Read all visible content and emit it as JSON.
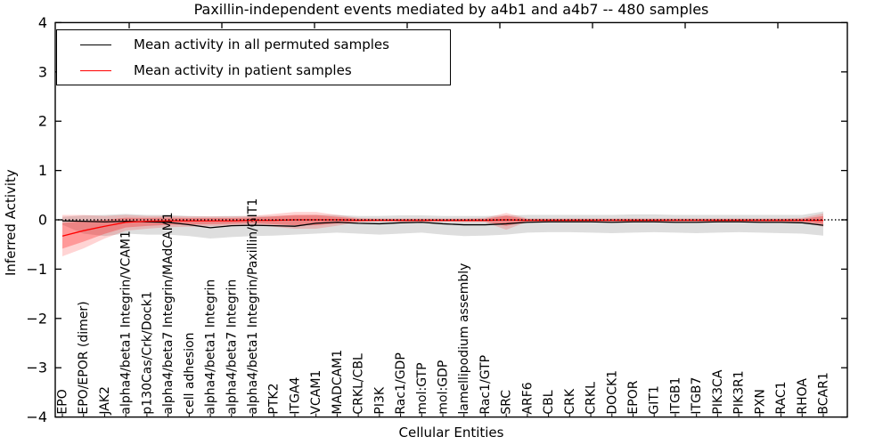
{
  "title": "Paxillin-independent events mediated by a4b1 and a4b7 -- 480 samples",
  "axes": {
    "xlabel": "Cellular Entities",
    "ylabel": "Inferred Activity"
  },
  "legend": {
    "items": [
      {
        "label": "Mean activity in all permuted samples",
        "color": "#000000"
      },
      {
        "label": "Mean activity in patient samples",
        "color": "#ff0000"
      }
    ]
  },
  "colors": {
    "background": "#ffffff",
    "axis": "#000000",
    "permuted_line": "#000000",
    "patient_line": "#ff0000",
    "permuted_band": "rgba(0,0,0,0.13)",
    "patient_band_outer": "rgba(255,0,0,0.17)",
    "patient_band_inner": "rgba(255,0,0,0.28)"
  },
  "chart_data": {
    "type": "line",
    "title": "Paxillin-independent events mediated by a4b1 and a4b7 -- 480 samples",
    "xlabel": "Cellular Entities",
    "ylabel": "Inferred Activity",
    "ylim": [
      -4,
      4
    ],
    "yticks": [
      4,
      3,
      2,
      1,
      0,
      -1,
      -2,
      -3,
      -4
    ],
    "grid": false,
    "legend_position": "upper left",
    "x_tick_label_rotation": 90,
    "categories": [
      "EPO",
      "EPO/EPOR (dimer)",
      "JAK2",
      "alpha4/beta1 Integrin/VCAM1",
      "p130Cas/Crk/Dock1",
      "alpha4/beta7 Integrin/MAdCAM1",
      "cell adhesion",
      "alpha4/beta1 Integrin",
      "alpha4/beta7 Integrin",
      "alpha4/beta1 Integrin/Paxillin/GIT1",
      "PTK2",
      "ITGA4",
      "VCAM1",
      "MADCAM1",
      "CRKL/CBL",
      "PI3K",
      "Rac1/GDP",
      "mol:GTP",
      "mol:GDP",
      "lamellipodium assembly",
      "Rac1/GTP",
      "SRC",
      "ARF6",
      "CBL",
      "CRK",
      "CRKL",
      "DOCK1",
      "EPOR",
      "GIT1",
      "ITGB1",
      "ITGB7",
      "PIK3CA",
      "PIK3R1",
      "PXN",
      "RAC1",
      "RHOA",
      "BCAR1"
    ],
    "series": [
      {
        "name": "Mean activity in all permuted samples",
        "color": "#000000",
        "values": [
          -0.02,
          -0.03,
          -0.04,
          -0.03,
          -0.04,
          -0.05,
          -0.1,
          -0.16,
          -0.12,
          -0.11,
          -0.12,
          -0.13,
          -0.07,
          -0.05,
          -0.07,
          -0.08,
          -0.06,
          -0.05,
          -0.08,
          -0.1,
          -0.1,
          -0.08,
          -0.05,
          -0.04,
          -0.04,
          -0.04,
          -0.05,
          -0.04,
          -0.04,
          -0.05,
          -0.05,
          -0.04,
          -0.04,
          -0.05,
          -0.05,
          -0.06,
          -0.11
        ],
        "band_low": [
          -0.1,
          -0.28,
          -0.33,
          -0.28,
          -0.3,
          -0.3,
          -0.33,
          -0.38,
          -0.35,
          -0.33,
          -0.32,
          -0.3,
          -0.28,
          -0.26,
          -0.28,
          -0.3,
          -0.28,
          -0.26,
          -0.3,
          -0.33,
          -0.32,
          -0.3,
          -0.26,
          -0.25,
          -0.25,
          -0.26,
          -0.27,
          -0.26,
          -0.25,
          -0.26,
          -0.27,
          -0.26,
          -0.25,
          -0.26,
          -0.27,
          -0.28,
          -0.32
        ],
        "band_high": [
          0.06,
          0.09,
          0.1,
          0.12,
          0.1,
          0.1,
          0.08,
          0.07,
          0.08,
          0.08,
          0.08,
          0.09,
          0.1,
          0.1,
          0.08,
          0.08,
          0.09,
          0.09,
          0.08,
          0.08,
          0.08,
          0.09,
          0.1,
          0.1,
          0.1,
          0.1,
          0.1,
          0.11,
          0.11,
          0.1,
          0.1,
          0.1,
          0.1,
          0.1,
          0.1,
          0.1,
          0.17
        ],
        "band_color": "rgba(0,0,0,0.13)"
      },
      {
        "name": "Mean activity in patient samples",
        "color": "#ff0000",
        "values": [
          -0.33,
          -0.22,
          -0.13,
          -0.05,
          -0.03,
          -0.02,
          -0.02,
          -0.02,
          -0.02,
          -0.01,
          -0.01,
          0.0,
          0.0,
          0.0,
          -0.01,
          -0.01,
          -0.01,
          -0.01,
          -0.01,
          -0.01,
          -0.01,
          0.0,
          -0.01,
          -0.01,
          -0.01,
          -0.01,
          -0.01,
          -0.01,
          -0.01,
          -0.01,
          -0.01,
          -0.01,
          -0.01,
          -0.01,
          -0.01,
          -0.01,
          -0.01
        ],
        "band_low": [
          -0.74,
          -0.58,
          -0.38,
          -0.22,
          -0.18,
          -0.15,
          -0.14,
          -0.13,
          -0.12,
          -0.1,
          -0.14,
          -0.18,
          -0.18,
          -0.12,
          -0.05,
          -0.03,
          -0.04,
          -0.04,
          -0.04,
          -0.05,
          -0.05,
          -0.2,
          -0.04,
          -0.03,
          -0.03,
          -0.03,
          -0.03,
          -0.03,
          -0.03,
          -0.03,
          -0.03,
          -0.03,
          -0.03,
          -0.04,
          -0.04,
          -0.05,
          -0.14
        ],
        "band_high": [
          0.1,
          0.1,
          0.08,
          0.1,
          0.08,
          0.08,
          0.07,
          0.07,
          0.07,
          0.08,
          0.12,
          0.16,
          0.16,
          0.1,
          0.04,
          0.03,
          0.03,
          0.03,
          0.03,
          0.03,
          0.04,
          0.14,
          0.03,
          0.03,
          0.03,
          0.03,
          0.03,
          0.03,
          0.03,
          0.03,
          0.03,
          0.03,
          0.03,
          0.03,
          0.03,
          0.04,
          0.13
        ],
        "band_color": "rgba(255,0,0,0.17)",
        "band_inner_fraction": 0.62,
        "band_inner_color": "rgba(255,0,0,0.28)"
      }
    ],
    "reference_line": {
      "value": 0,
      "style": "dotted",
      "color": "#000000"
    }
  }
}
